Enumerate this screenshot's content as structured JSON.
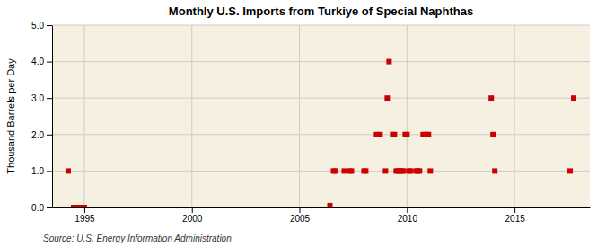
{
  "chart_data": {
    "type": "scatter",
    "title": "Monthly U.S. Imports from Turkiye of Special Naphthas",
    "ylabel": "Thousand Barrels per Day",
    "annotations": [
      "Source: U.S. Energy Information Administration"
    ],
    "color": "#cc0000",
    "marker": "square",
    "grid": true,
    "xlim": [
      1993.5,
      2018.5
    ],
    "ylim": [
      0.0,
      5.0
    ],
    "xticks": [
      1995,
      2000,
      2005,
      2010,
      2015
    ],
    "yticks": [
      {
        "value": 0.0,
        "label": "0.0"
      },
      {
        "value": 1.0,
        "label": "1.0"
      },
      {
        "value": 2.0,
        "label": "2.0"
      },
      {
        "value": 3.0,
        "label": "3.0"
      },
      {
        "value": 4.0,
        "label": "4.0"
      },
      {
        "value": 5.0,
        "label": "5.0"
      }
    ],
    "x": [
      1994.25,
      1994.5,
      1994.583,
      1994.667,
      1994.75,
      1994.833,
      1994.917,
      1995.0,
      2006.417,
      2006.583,
      2006.667,
      2007.083,
      2007.333,
      2007.417,
      2008.0,
      2008.083,
      2008.583,
      2008.75,
      2009.0,
      2009.083,
      2009.167,
      2009.333,
      2009.417,
      2009.5,
      2009.583,
      2009.667,
      2009.75,
      2009.833,
      2009.917,
      2010.0,
      2010.083,
      2010.167,
      2010.417,
      2010.5,
      2010.583,
      2010.75,
      2010.917,
      2011.0,
      2011.083,
      2013.917,
      2014.0,
      2014.083,
      2017.583,
      2017.75
    ],
    "values": [
      1.0,
      0.0,
      0.0,
      0.0,
      0.0,
      0.0,
      0.0,
      0.0,
      0.05,
      1.0,
      1.0,
      1.0,
      1.0,
      1.0,
      1.0,
      1.0,
      2.0,
      2.0,
      1.0,
      3.0,
      4.0,
      2.0,
      2.0,
      1.0,
      1.0,
      1.0,
      1.0,
      1.0,
      2.0,
      2.0,
      1.0,
      1.0,
      1.0,
      1.0,
      1.0,
      2.0,
      2.0,
      2.0,
      1.0,
      3.0,
      2.0,
      1.0,
      1.0,
      3.0
    ]
  }
}
